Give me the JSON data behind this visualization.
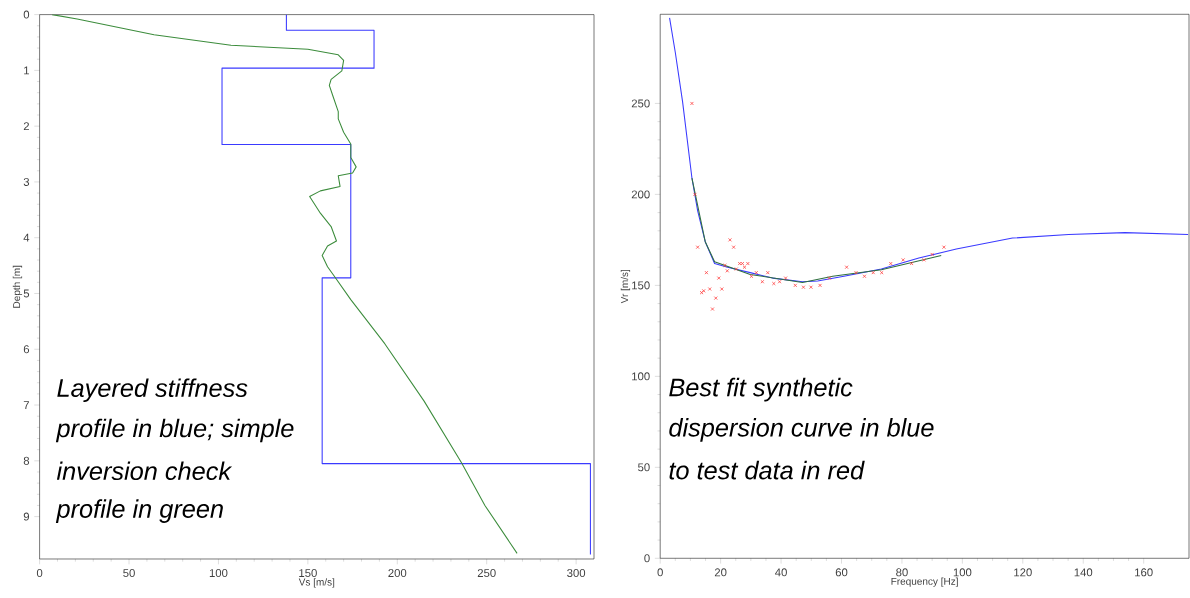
{
  "chart_data": [
    {
      "type": "line",
      "xlabel": "Vs [m/s]",
      "ylabel": "Depth [m]",
      "xlim": [
        0,
        310
      ],
      "ylim": [
        9.76,
        0
      ],
      "xticks": [
        0,
        50,
        100,
        150,
        200,
        250,
        300
      ],
      "yticks": [
        0,
        1,
        2,
        3,
        4,
        5,
        6,
        7,
        8,
        9
      ],
      "annotations": [
        "Layered stiffness",
        "profile in blue; simple",
        "inversion check",
        "profile in green"
      ],
      "series": [
        {
          "color": "#3a3aff",
          "x": [
            138,
            138,
            187,
            187,
            102,
            102,
            174,
            174,
            158,
            158,
            308,
            308
          ],
          "values": [
            0,
            0.28,
            0.28,
            0.96,
            0.96,
            2.33,
            2.33,
            4.72,
            4.72,
            8.05,
            8.05,
            9.68
          ]
        },
        {
          "color": "#3c8c3c",
          "x": [
            7,
            21,
            64,
            107,
            150,
            167,
            170,
            169,
            163,
            162,
            164,
            167,
            167,
            170,
            174,
            174,
            177,
            175,
            167,
            168,
            157,
            151,
            157,
            163,
            166,
            161,
            158,
            161,
            165,
            174,
            193,
            215,
            236,
            249,
            267
          ],
          "values": [
            0,
            0.08,
            0.36,
            0.55,
            0.62,
            0.72,
            0.82,
            1.01,
            1.16,
            1.27,
            1.46,
            1.74,
            1.87,
            2.11,
            2.32,
            2.56,
            2.73,
            2.84,
            2.89,
            3.08,
            3.16,
            3.26,
            3.56,
            3.8,
            4.06,
            4.15,
            4.32,
            4.52,
            4.7,
            5.11,
            5.9,
            6.93,
            8.04,
            8.8,
            9.66
          ]
        }
      ]
    },
    {
      "type": "line",
      "xlabel": "Frequency [Hz]",
      "ylabel": "Vr [m/s]",
      "xlim": [
        0,
        175
      ],
      "ylim": [
        0,
        299
      ],
      "xticks": [
        0,
        20,
        40,
        60,
        80,
        100,
        120,
        140,
        160
      ],
      "yticks": [
        0,
        50,
        100,
        150,
        200,
        250
      ],
      "annotations": [
        "Best fit synthetic",
        "dispersion curve in blue",
        "to test data in red"
      ],
      "series": [
        {
          "color": "#3a3aff",
          "x": [
            3.1,
            5.0,
            7.4,
            10.5,
            12.4,
            14.9,
            18.0,
            22.3,
            29.8,
            37.2,
            47.1,
            52.1,
            60.8,
            73.2,
            85.6,
            98.0,
            116.6,
            135.2,
            153.8,
            174.7
          ],
          "values": [
            297,
            278,
            251,
            209,
            191,
            174,
            162,
            160,
            157,
            154,
            152,
            152.4,
            155,
            159,
            165,
            170,
            176,
            178,
            179,
            178
          ]
        },
        {
          "color": "#2f6f3f",
          "x": [
            10.5,
            14.9,
            18.0,
            29.8,
            47.1,
            57.1,
            73.2,
            93.0
          ],
          "values": [
            209,
            174,
            163,
            156,
            151.6,
            155.0,
            158.6,
            166.4
          ]
        },
        {
          "type": "scatter",
          "marker": "cross",
          "color": "#ff4040",
          "x": [
            10.5,
            11.5,
            12.4,
            15.3,
            13.7,
            14.4,
            16.4,
            17.3,
            18.4,
            19.4,
            20.4,
            21.4,
            22.2,
            23.1,
            24.3,
            25.2,
            26.3,
            27.2,
            27.9,
            29.0,
            30.2,
            31.8,
            33.8,
            35.6,
            37.6,
            39.5,
            41.5,
            44.7,
            47.4,
            49.9,
            52.9,
            56.0,
            61.7,
            64.8,
            67.6,
            70.5,
            73.3,
            76.3,
            80.4,
            83.2,
            87.3,
            90.0,
            93.9
          ],
          "values": [
            250,
            200,
            171,
            157,
            146,
            147,
            148,
            137,
            143,
            154,
            148,
            161,
            158,
            175,
            171,
            159,
            162,
            162,
            160,
            162,
            155,
            157,
            152,
            157,
            151,
            152,
            154,
            150,
            149,
            149,
            150,
            154,
            160,
            157,
            155,
            157,
            157,
            162,
            164,
            162,
            164,
            167,
            171
          ]
        }
      ]
    }
  ]
}
